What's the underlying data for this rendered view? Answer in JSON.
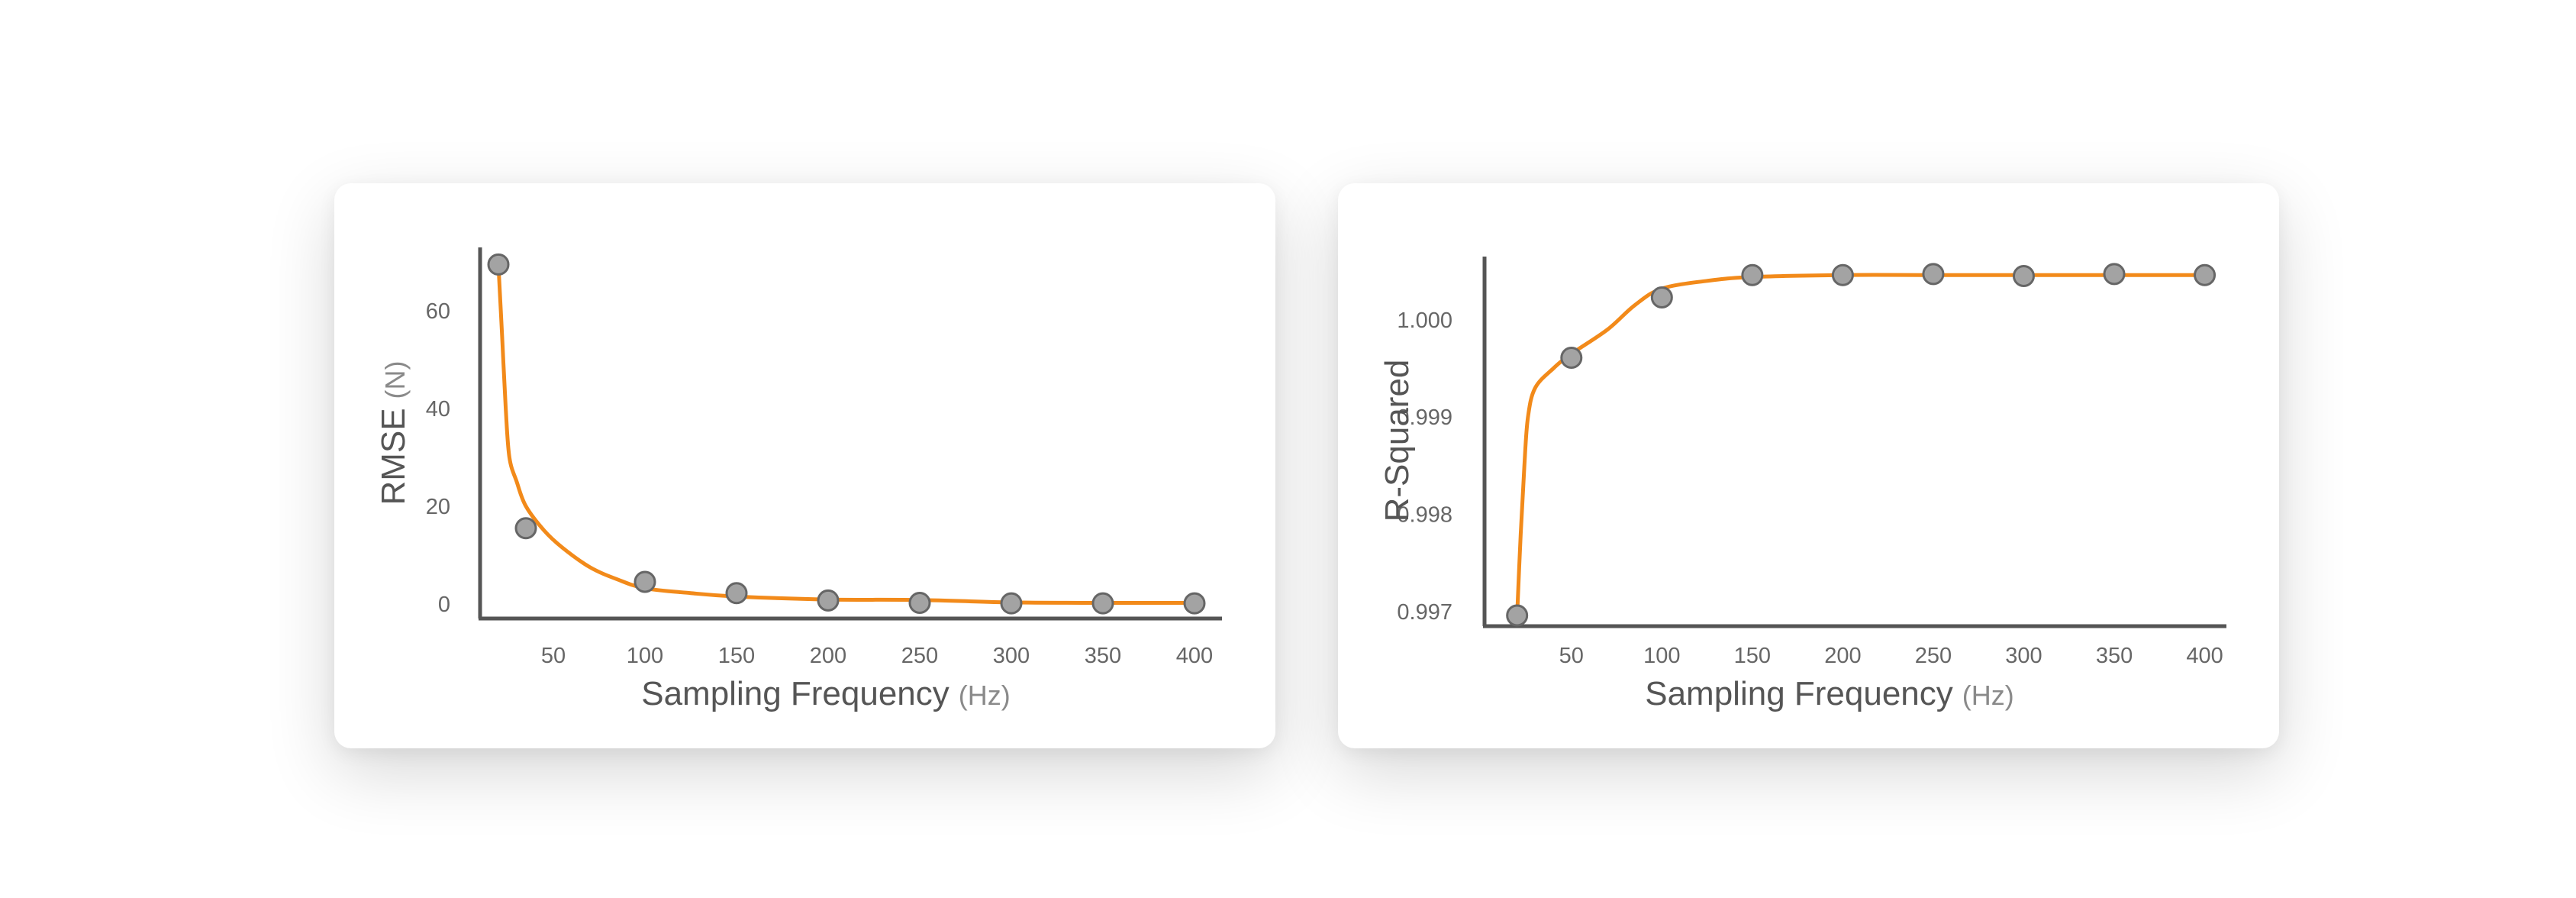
{
  "chart_data": [
    {
      "type": "scatter",
      "title": "",
      "xlabel": "Sampling Frequency",
      "xlabel_unit": "(Hz)",
      "ylabel": "RMSE",
      "ylabel_unit": "(N)",
      "xlim": [
        10,
        415
      ],
      "ylim": [
        -3,
        73
      ],
      "xticks": [
        50,
        100,
        150,
        200,
        250,
        300,
        350,
        400
      ],
      "yticks": [
        0,
        20,
        40,
        60
      ],
      "y_tick_decimals": 0,
      "series": [
        {
          "points": [
            {
              "x": 20,
              "y": 69.5
            },
            {
              "x": 35,
              "y": 15.5
            },
            {
              "x": 100,
              "y": 4.5
            },
            {
              "x": 150,
              "y": 2.2
            },
            {
              "x": 200,
              "y": 0.7
            },
            {
              "x": 250,
              "y": 0.2
            },
            {
              "x": 300,
              "y": 0.1
            },
            {
              "x": 350,
              "y": 0.1
            },
            {
              "x": 400,
              "y": 0.1
            }
          ],
          "curve": [
            [
              20,
              69.5
            ],
            [
              22,
              55
            ],
            [
              24,
              40
            ],
            [
              26,
              30
            ],
            [
              30,
              25
            ],
            [
              35,
              20
            ],
            [
              45,
              15
            ],
            [
              55,
              11.5
            ],
            [
              70,
              7.5
            ],
            [
              85,
              5
            ],
            [
              100,
              3.2
            ],
            [
              125,
              2.2
            ],
            [
              150,
              1.5
            ],
            [
              200,
              0.9
            ],
            [
              250,
              0.8
            ],
            [
              300,
              0.3
            ],
            [
              350,
              0.2
            ],
            [
              400,
              0.2
            ]
          ]
        }
      ],
      "colors": {
        "line": "#f28a1a",
        "marker_fill": "#a3a3a3",
        "marker_edge": "#666666",
        "axis": "#555555"
      }
    },
    {
      "type": "scatter",
      "title": "",
      "xlabel": "Sampling Frequency",
      "xlabel_unit": "(Hz)",
      "ylabel": "R-Squared",
      "ylabel_unit": "",
      "xlim": [
        2,
        412
      ],
      "ylim": [
        0.99685,
        1.00065
      ],
      "xticks": [
        50,
        100,
        150,
        200,
        250,
        300,
        350,
        400
      ],
      "yticks": [
        0.997,
        0.998,
        0.999,
        1.0
      ],
      "y_tick_decimals": 3,
      "series": [
        {
          "points": [
            {
              "x": 20,
              "y": 0.99696
            },
            {
              "x": 50,
              "y": 0.99961
            },
            {
              "x": 100,
              "y": 1.00023
            },
            {
              "x": 150,
              "y": 1.00046
            },
            {
              "x": 200,
              "y": 1.00046
            },
            {
              "x": 250,
              "y": 1.00047
            },
            {
              "x": 300,
              "y": 1.00045
            },
            {
              "x": 350,
              "y": 1.00047
            },
            {
              "x": 400,
              "y": 1.00046
            }
          ],
          "curve": [
            [
              20,
              0.99696
            ],
            [
              22,
              0.9978
            ],
            [
              24,
              0.9985
            ],
            [
              26,
              0.999
            ],
            [
              30,
              0.9993
            ],
            [
              40,
              0.9995
            ],
            [
              50,
              0.99965
            ],
            [
              70,
              0.9999
            ],
            [
              85,
              1.00015
            ],
            [
              100,
              1.00032
            ],
            [
              125,
              1.0004
            ],
            [
              150,
              1.00044
            ],
            [
              200,
              1.00046
            ],
            [
              250,
              1.00046
            ],
            [
              300,
              1.00046
            ],
            [
              350,
              1.00046
            ],
            [
              400,
              1.00046
            ]
          ]
        }
      ],
      "colors": {
        "line": "#f28a1a",
        "marker_fill": "#a3a3a3",
        "marker_edge": "#666666",
        "axis": "#555555"
      }
    }
  ]
}
